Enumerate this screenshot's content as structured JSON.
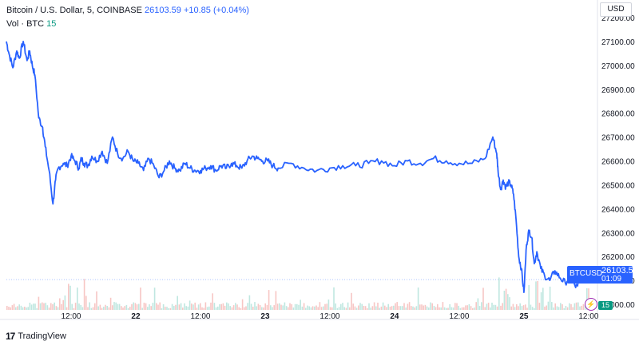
{
  "legend": {
    "symbol": "Bitcoin / U.S. Dollar, 5, COINBASE",
    "price": "26103.59",
    "change": "+10.85 (+0.04%)",
    "vol_label": "Vol · BTC",
    "vol_value": "15"
  },
  "currency": "USD",
  "price_badge": {
    "symbol": "BTCUSD",
    "price": "26103.59",
    "countdown": "01:09"
  },
  "volume_badge": "15",
  "event_icon": "lightning-icon",
  "logo": {
    "icon": "tradingview-logo-icon",
    "text": "TradingView"
  },
  "colors": {
    "line": "#2962ff",
    "volume_up": "#bfe7e0",
    "volume_down": "#f7c6c4",
    "accent": "#2962ff"
  },
  "chart_data": {
    "type": "line",
    "ylim": [
      25950,
      27200
    ],
    "y_ticks": [
      26000,
      26100,
      26200,
      26300,
      26400,
      26500,
      26600,
      26700,
      26800,
      26900,
      27000,
      27100,
      27200
    ],
    "y_tick_labels": [
      "26000.00",
      "26100.00",
      "26200.00",
      "26300.00",
      "26400.00",
      "26500.00",
      "26600.00",
      "26700.00",
      "26800.00",
      "26900.00",
      "27000.00",
      "27100.00",
      "27200.00"
    ],
    "x_tick_labels": [
      "12:00",
      "22",
      "12:00",
      "23",
      "12:00",
      "24",
      "12:00",
      "25",
      "12:00"
    ],
    "x_tick_days": [
      0.5,
      1.0,
      1.5,
      2.0,
      2.5,
      3.0,
      3.5,
      4.0,
      4.5
    ],
    "x_range_days": [
      0.0,
      4.55
    ],
    "series": [
      {
        "x_days": [
          0.0,
          0.02,
          0.05,
          0.08,
          0.1,
          0.13,
          0.16,
          0.18,
          0.2,
          0.22,
          0.25,
          0.28,
          0.3,
          0.33,
          0.36,
          0.38,
          0.4,
          0.44,
          0.47,
          0.5,
          0.53,
          0.56,
          0.58,
          0.6,
          0.63,
          0.66,
          0.7,
          0.74,
          0.78,
          0.82,
          0.86,
          0.9,
          0.94,
          0.98,
          1.02,
          1.06,
          1.1,
          1.14,
          1.18,
          1.22,
          1.26,
          1.3,
          1.34,
          1.38,
          1.42,
          1.46,
          1.5,
          1.54,
          1.58,
          1.62,
          1.66,
          1.7,
          1.74,
          1.78,
          1.82,
          1.86,
          1.9,
          1.94,
          1.98,
          2.02,
          2.06,
          2.1,
          2.2,
          2.3,
          2.4,
          2.5,
          2.6,
          2.7,
          2.8,
          2.9,
          3.0,
          3.1,
          3.2,
          3.3,
          3.4,
          3.5,
          3.6,
          3.7,
          3.76,
          3.79,
          3.8,
          3.82,
          3.84,
          3.86,
          3.88,
          3.9,
          3.92,
          3.94,
          3.96,
          3.98,
          4.0,
          4.02,
          4.04,
          4.06,
          4.08,
          4.1,
          4.13,
          4.16,
          4.2,
          4.24,
          4.28,
          4.32,
          4.36,
          4.4,
          4.43,
          4.46,
          4.5
        ],
        "y": [
          27100,
          27050,
          26990,
          27060,
          27030,
          27100,
          27020,
          27060,
          27000,
          26960,
          26780,
          26740,
          26660,
          26560,
          26420,
          26520,
          26570,
          26590,
          26580,
          26620,
          26600,
          26570,
          26610,
          26590,
          26580,
          26620,
          26600,
          26640,
          26590,
          26700,
          26630,
          26610,
          26640,
          26600,
          26590,
          26560,
          26610,
          26580,
          26530,
          26560,
          26600,
          26570,
          26560,
          26590,
          26570,
          26560,
          26560,
          26570,
          26580,
          26560,
          26580,
          26570,
          26590,
          26580,
          26570,
          26600,
          26620,
          26610,
          26600,
          26600,
          26580,
          26570,
          26590,
          26570,
          26560,
          26570,
          26580,
          26580,
          26590,
          26600,
          26580,
          26600,
          26590,
          26610,
          26600,
          26590,
          26590,
          26610,
          26700,
          26630,
          26560,
          26480,
          26520,
          26490,
          26510,
          26500,
          26460,
          26350,
          26200,
          26150,
          26050,
          26250,
          26310,
          26280,
          26170,
          26220,
          26150,
          26120,
          26100,
          26140,
          26110,
          26090,
          26120,
          26070,
          26095,
          26120,
          26103.59
        ]
      }
    ]
  }
}
